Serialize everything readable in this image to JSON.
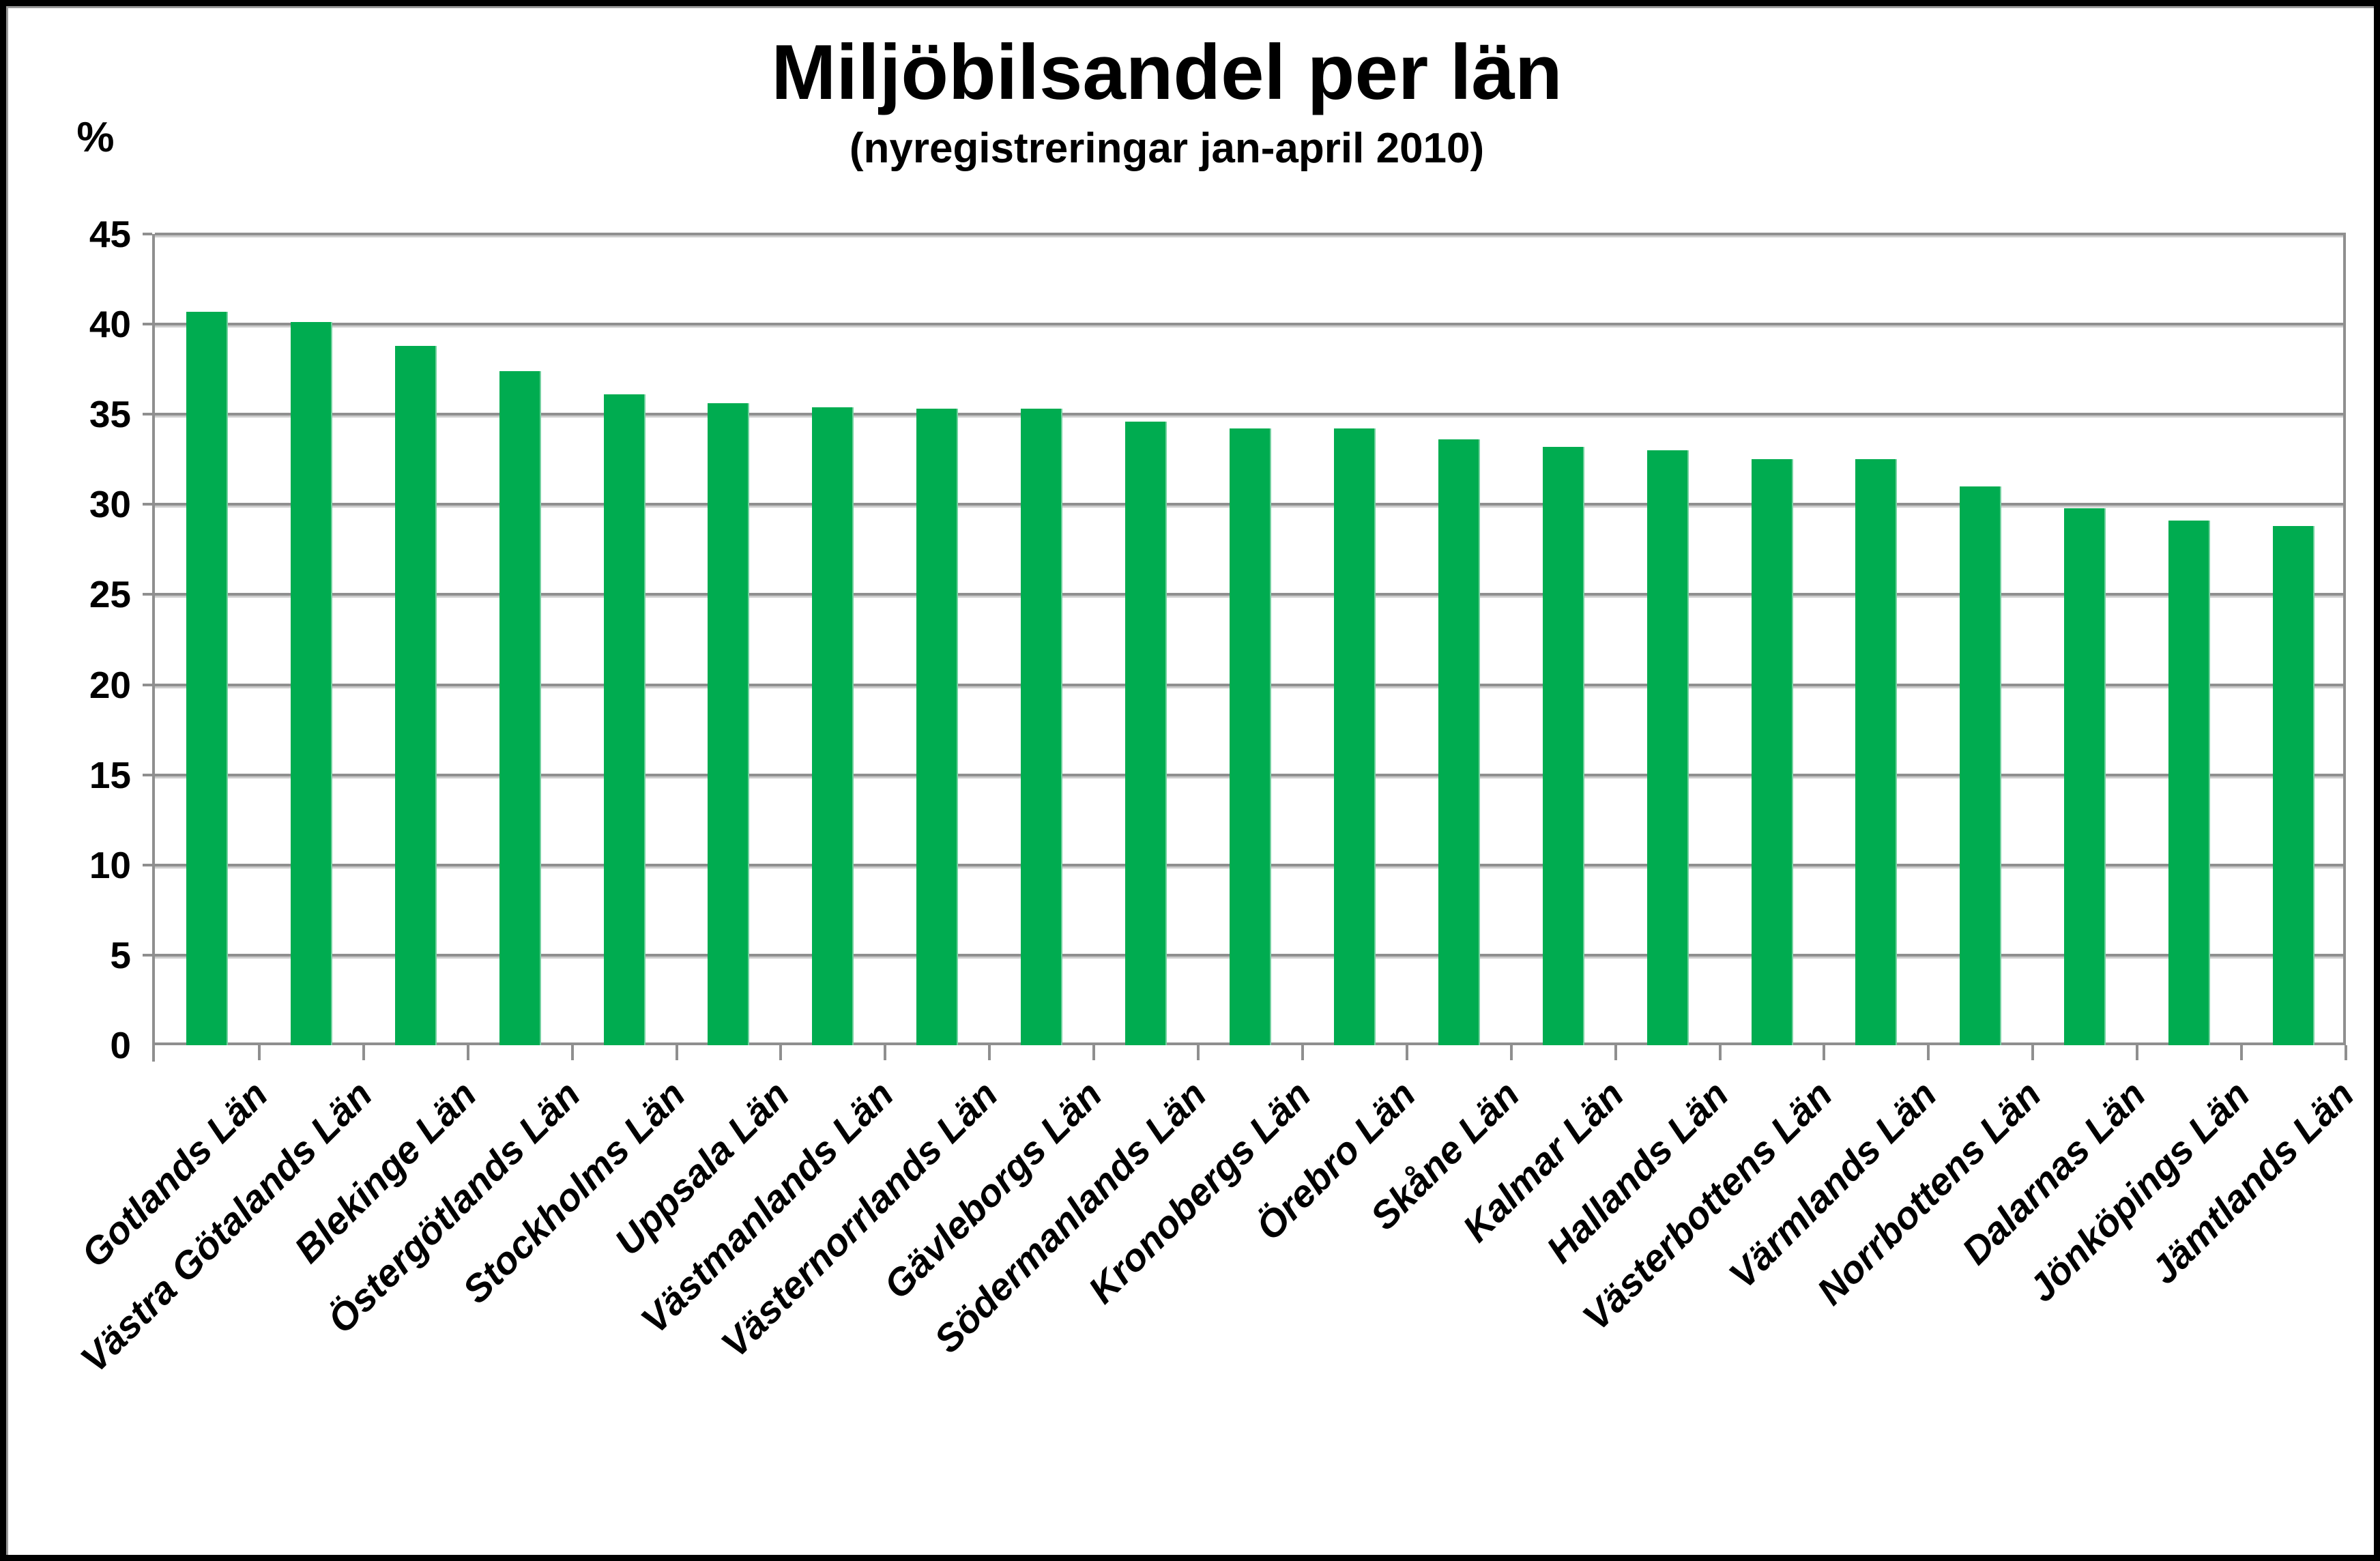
{
  "chart_data": {
    "type": "bar",
    "title": "Miljöbilsandel per län",
    "subtitle": "(nyregistreringar jan-april 2010)",
    "ylabel": "%",
    "xlabel": "",
    "categories": [
      "Gotlands Län",
      "Västra Götalands Län",
      "Blekinge Län",
      "Östergötlands Län",
      "Stockholms Län",
      "Uppsala Län",
      "Västmanlands Län",
      "Västernorrlands Län",
      "Gävleborgs Län",
      "Södermanlands Län",
      "Kronobergs Län",
      "Örebro Län",
      "Skåne Län",
      "Kalmar Län",
      "Hallands Län",
      "Västerbottens Län",
      "Värmlands Län",
      "Norrbottens Län",
      "Dalarnas Län",
      "Jönköpings Län",
      "Jämtlands Län"
    ],
    "values": [
      40.7,
      40.1,
      38.8,
      37.4,
      36.1,
      35.6,
      35.4,
      35.3,
      35.3,
      34.6,
      34.2,
      34.2,
      33.6,
      33.2,
      33.0,
      32.5,
      32.5,
      31.0,
      29.8,
      29.1,
      28.8
    ],
    "ylim": [
      0,
      45
    ],
    "yticks": [
      0,
      5,
      10,
      15,
      20,
      25,
      30,
      35,
      40,
      45
    ],
    "grid": true,
    "legend": false,
    "bar_color": "#00AC50",
    "grid_color": "#8F8F8F",
    "axis_color": "#8F8F8F",
    "text_color": "#000000"
  }
}
